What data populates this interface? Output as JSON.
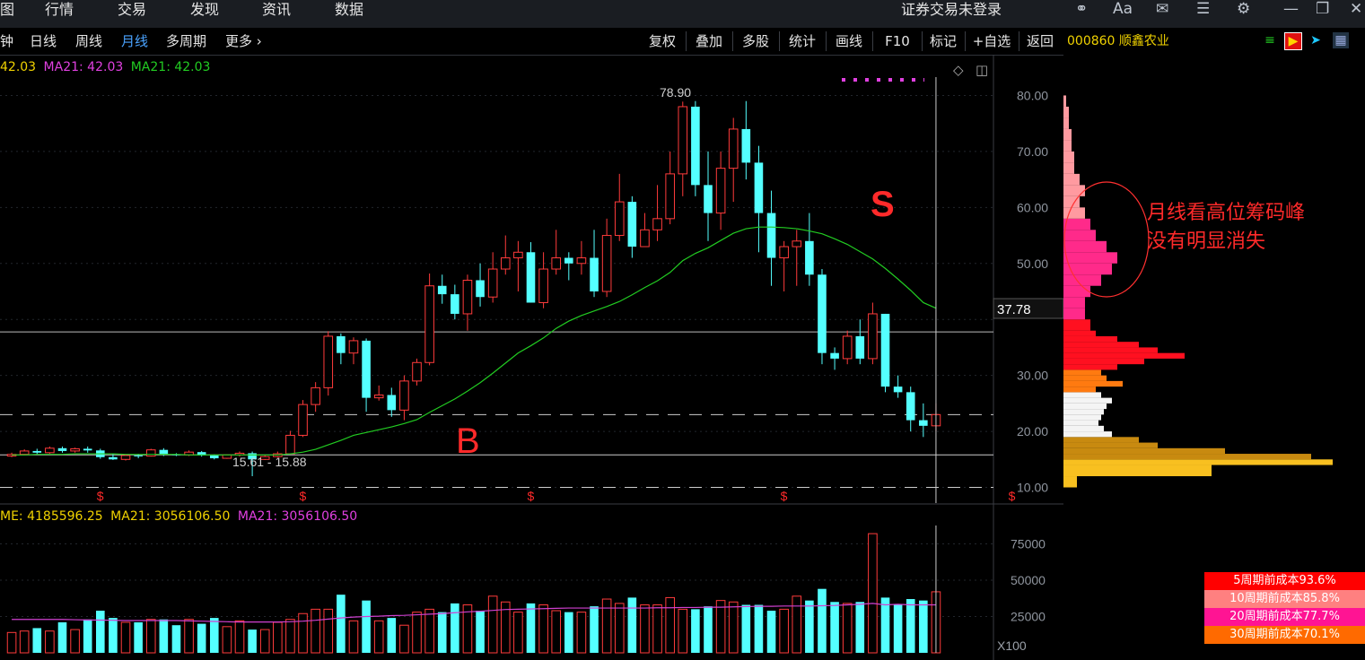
{
  "top_nav": {
    "items": [
      "图",
      "行情",
      "交易",
      "发现",
      "资讯",
      "数据"
    ],
    "login_status": "证券交易未登录",
    "font_size_icon": "Aa"
  },
  "period_tabs": [
    "钟",
    "日线",
    "周线",
    "月线",
    "多周期",
    "更多"
  ],
  "active_period": "月线",
  "toolbar": [
    "复权",
    "叠加",
    "多股",
    "统计",
    "画线",
    "F10",
    "标记",
    "+自选",
    "返回"
  ],
  "stock": {
    "code": "000860",
    "name": "顺鑫农业"
  },
  "price_legend": {
    "ma_close": "42.03",
    "ma21a_label": "MA21: 42.03",
    "ma21b_label": "MA21: 42.03"
  },
  "volume_legend": {
    "vol_label": "ME: 4185596.25",
    "ma21a_label": "MA21: 3056106.50",
    "ma21b_label": "MA21: 3056106.50"
  },
  "annotations": {
    "high_label": "78.90",
    "low_label": "15.61 - 15.88",
    "buy_marker": "B",
    "sell_marker": "S",
    "current_price_tag": "37.78",
    "volume_unit": "X100",
    "note_line1": "月线看高位筹码峰",
    "note_line2": "没有明显消失"
  },
  "cost_rows": [
    {
      "label": "5周期前成本93.6%",
      "color": "#ff0000"
    },
    {
      "label": "10周期前成本85.8%",
      "color": "#ff8080"
    },
    {
      "label": "20周期前成本77.7%",
      "color": "#ff1493"
    },
    {
      "label": "30周期前成本70.1%",
      "color": "#ff6a00"
    }
  ],
  "colors": {
    "up": "#ff3b3b",
    "down": "#54ffff",
    "ma21": "#22cc22",
    "vol_ma": "#d040d0",
    "accent_yellow": "#f0d200"
  },
  "chart_data": {
    "type": "candlestick",
    "period": "monthly",
    "price_axis": {
      "ylim": [
        8,
        86
      ],
      "ticks": [
        10,
        20,
        30,
        40,
        50,
        60,
        70,
        80
      ],
      "tick_labels": [
        "10.00",
        "20.00",
        "30.00",
        "",
        "50.00",
        "60.00",
        "70.00",
        "80.00"
      ]
    },
    "volume_axis": {
      "ylim": [
        0,
        87000
      ],
      "ticks": [
        25000,
        50000,
        75000
      ],
      "unit": "X100"
    },
    "candles": [
      [
        15.6,
        15.9,
        15.4,
        16.2,
        140000
      ],
      [
        15.9,
        16.5,
        15.7,
        16.8,
        150000
      ],
      [
        16.5,
        16.2,
        15.9,
        16.9,
        170000
      ],
      [
        16.2,
        17.0,
        16.0,
        17.3,
        150000
      ],
      [
        17.0,
        16.5,
        16.2,
        17.3,
        210000
      ],
      [
        16.5,
        16.9,
        16.2,
        17.1,
        160000
      ],
      [
        16.9,
        16.6,
        16.2,
        17.3,
        230000
      ],
      [
        16.6,
        15.4,
        15.1,
        16.9,
        290000
      ],
      [
        15.4,
        15.0,
        14.9,
        16.0,
        240000
      ],
      [
        15.0,
        15.7,
        14.8,
        15.9,
        210000
      ],
      [
        15.7,
        15.6,
        15.2,
        16.0,
        210000
      ],
      [
        15.6,
        16.7,
        15.5,
        16.9,
        230000
      ],
      [
        16.7,
        15.9,
        15.6,
        17.0,
        230000
      ],
      [
        15.9,
        15.8,
        15.6,
        16.1,
        190000
      ],
      [
        15.8,
        16.3,
        15.6,
        16.6,
        230000
      ],
      [
        16.3,
        15.7,
        15.5,
        16.5,
        200000
      ],
      [
        15.7,
        15.2,
        15.0,
        15.9,
        240000
      ],
      [
        15.2,
        15.8,
        15.1,
        15.9,
        180000
      ],
      [
        15.8,
        16.1,
        15.5,
        16.4,
        220000
      ],
      [
        16.1,
        15.0,
        12.0,
        16.4,
        160000
      ],
      [
        15.0,
        15.5,
        14.9,
        15.8,
        160000
      ],
      [
        15.5,
        16.0,
        15.3,
        16.4,
        210000
      ],
      [
        16.0,
        19.3,
        15.9,
        20.1,
        230000
      ],
      [
        19.3,
        24.8,
        19.0,
        25.6,
        270000
      ],
      [
        24.8,
        27.8,
        23.5,
        28.8,
        300000
      ],
      [
        27.8,
        37.0,
        26.4,
        37.9,
        300000
      ],
      [
        37.0,
        34.0,
        32.0,
        37.5,
        400000
      ],
      [
        34.0,
        36.2,
        32.0,
        36.8,
        220000
      ],
      [
        36.2,
        26.0,
        23.5,
        36.6,
        360000
      ],
      [
        26.0,
        26.5,
        25.5,
        28.2,
        220000
      ],
      [
        26.5,
        23.8,
        22.6,
        27.8,
        240000
      ],
      [
        23.8,
        29.0,
        22.0,
        30.0,
        190000
      ],
      [
        29.0,
        32.3,
        28.2,
        33.0,
        280000
      ],
      [
        32.3,
        46.0,
        31.8,
        48.2,
        300000
      ],
      [
        46.0,
        44.5,
        42.8,
        48.0,
        280000
      ],
      [
        44.5,
        41.0,
        40.0,
        46.2,
        340000
      ],
      [
        41.0,
        47.0,
        38.0,
        48.0,
        330000
      ],
      [
        47.0,
        44.0,
        42.3,
        50.0,
        290000
      ],
      [
        44.0,
        49.0,
        43.0,
        52.0,
        390000
      ],
      [
        49.0,
        51.0,
        48.0,
        55.0,
        350000
      ],
      [
        51.0,
        52.0,
        45.0,
        54.0,
        280000
      ],
      [
        52.0,
        43.0,
        43.0,
        53.8,
        340000
      ],
      [
        43.0,
        49.0,
        42.0,
        52.0,
        330000
      ],
      [
        49.0,
        51.0,
        48.0,
        56.0,
        290000
      ],
      [
        51.0,
        50.0,
        47.0,
        52.0,
        280000
      ],
      [
        50.0,
        51.0,
        48.0,
        54.0,
        280000
      ],
      [
        51.0,
        45.0,
        44.0,
        56.0,
        320000
      ],
      [
        45.0,
        55.0,
        44.0,
        58.0,
        370000
      ],
      [
        55.0,
        61.0,
        54.0,
        66.0,
        340000
      ],
      [
        61.0,
        53.0,
        51.0,
        62.0,
        380000
      ],
      [
        53.0,
        56.0,
        53.0,
        59.0,
        330000
      ],
      [
        56.0,
        58.0,
        54.0,
        64.0,
        330000
      ],
      [
        58.0,
        66.0,
        57.0,
        70.0,
        380000
      ],
      [
        66.0,
        78.0,
        62.0,
        78.9,
        300000
      ],
      [
        78.0,
        64.0,
        62.0,
        79.0,
        300000
      ],
      [
        64.0,
        59.0,
        54.0,
        70.0,
        320000
      ],
      [
        59.0,
        67.0,
        56.0,
        70.0,
        360000
      ],
      [
        67.0,
        74.0,
        61.0,
        76.0,
        350000
      ],
      [
        74.0,
        68.0,
        65.0,
        79.0,
        330000
      ],
      [
        68.0,
        59.0,
        52.0,
        71.0,
        330000
      ],
      [
        59.0,
        51.0,
        46.0,
        63.0,
        290000
      ],
      [
        51.0,
        53.0,
        45.0,
        54.0,
        300000
      ],
      [
        53.0,
        54.0,
        46.0,
        56.0,
        390000
      ],
      [
        54.0,
        48.0,
        46.0,
        59.0,
        360000
      ],
      [
        48.0,
        34.0,
        32.0,
        49.0,
        440000
      ],
      [
        34.0,
        33.0,
        31.0,
        35.0,
        350000
      ],
      [
        33.0,
        37.0,
        32.0,
        38.0,
        340000
      ],
      [
        37.0,
        33.0,
        32.0,
        40.0,
        350000
      ],
      [
        33.0,
        41.0,
        32.0,
        43.0,
        820000
      ],
      [
        41.0,
        28.0,
        27.0,
        41.0,
        380000
      ],
      [
        28.0,
        27.0,
        26.0,
        30.0,
        330000
      ],
      [
        27.0,
        22.0,
        20.0,
        28.0,
        370000
      ],
      [
        22.0,
        21.0,
        19.0,
        25.0,
        360000
      ],
      [
        21.0,
        23.0,
        20.0,
        25.0,
        420000
      ]
    ],
    "ma21": [
      15.8,
      15.8,
      15.9,
      15.9,
      15.9,
      16.0,
      16.0,
      16.0,
      16.0,
      15.9,
      15.9,
      15.9,
      15.9,
      15.9,
      15.8,
      15.8,
      15.8,
      15.8,
      15.8,
      15.8,
      15.8,
      15.8,
      16.0,
      16.3,
      16.8,
      17.6,
      18.4,
      19.3,
      19.8,
      20.3,
      20.8,
      21.4,
      22.1,
      23.4,
      24.6,
      25.8,
      27.2,
      28.7,
      30.4,
      32.2,
      34.0,
      35.3,
      36.7,
      38.4,
      39.7,
      40.7,
      41.5,
      42.3,
      43.2,
      44.4,
      45.7,
      46.9,
      48.4,
      50.5,
      51.8,
      52.8,
      54.1,
      55.4,
      56.2,
      56.5,
      56.5,
      56.4,
      56.2,
      55.8,
      55.3,
      54.4,
      53.4,
      52.1,
      50.8,
      49.1,
      47.2,
      45.2,
      43.0,
      42.0
    ],
    "vol_ma": [
      230000,
      230000,
      230000,
      230000,
      230000,
      228000,
      226000,
      225000,
      224000,
      222000,
      222000,
      222000,
      222000,
      222000,
      220000,
      218000,
      216000,
      214000,
      212000,
      212000,
      212000,
      212000,
      214000,
      218000,
      224000,
      232000,
      240000,
      246000,
      250000,
      252000,
      256000,
      258000,
      262000,
      266000,
      270000,
      276000,
      282000,
      286000,
      292000,
      298000,
      300000,
      302000,
      304000,
      306000,
      308000,
      308000,
      308000,
      308000,
      308000,
      308000,
      308000,
      310000,
      310000,
      312000,
      312000,
      314000,
      314000,
      316000,
      318000,
      320000,
      320000,
      322000,
      322000,
      322000,
      324000,
      326000,
      330000,
      334000,
      340000,
      330000,
      334000,
      330000,
      330000,
      330000
    ],
    "signal_markers": {
      "symbol": "$",
      "candle_index": [
        7,
        23,
        41,
        61,
        79
      ]
    },
    "crosshair_price": 37.78,
    "horizontal_lines": [
      15.8,
      23.0,
      10.0
    ],
    "chip_distribution": {
      "note": "holding-cost density by price level (relative 0-1)",
      "prices": [
        10,
        12,
        14,
        15,
        16,
        17,
        18,
        19,
        20,
        21,
        22,
        23,
        24,
        25,
        26,
        27,
        28,
        29,
        30,
        31,
        32,
        33,
        34,
        35,
        36,
        37,
        38,
        40,
        42,
        44,
        46,
        48,
        50,
        52,
        54,
        56,
        58,
        60,
        62,
        64,
        66,
        68,
        70,
        72,
        74,
        76,
        78,
        80
      ],
      "density": [
        0.05,
        0.55,
        1.0,
        0.92,
        0.6,
        0.35,
        0.28,
        0.18,
        0.15,
        0.13,
        0.14,
        0.15,
        0.16,
        0.18,
        0.14,
        0.12,
        0.22,
        0.16,
        0.14,
        0.2,
        0.3,
        0.45,
        0.35,
        0.28,
        0.2,
        0.12,
        0.1,
        0.08,
        0.08,
        0.1,
        0.14,
        0.18,
        0.2,
        0.16,
        0.12,
        0.1,
        0.08,
        0.06,
        0.08,
        0.06,
        0.04,
        0.04,
        0.03,
        0.03,
        0.02,
        0.02,
        0.01,
        0.01
      ]
    }
  }
}
